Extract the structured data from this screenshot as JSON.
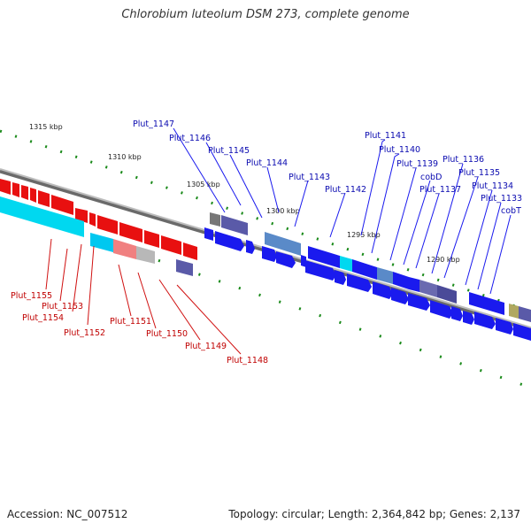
{
  "title": "Chlorobium luteolum DSM 273, complete genome",
  "footer": {
    "accession": "Accession: NC_007512",
    "summary": "Topology: circular; Length: 2,364,842 bp; Genes: 2,137"
  },
  "colors": {
    "forward_gene": "#1a1aee",
    "reverse_gene": "#e81010",
    "backbone": "#888888",
    "tick": "#1a8a1a",
    "label_forward": "#0a0ab0",
    "label_reverse": "#c00000"
  },
  "kbp_labels": [
    "1315 kbp",
    "1310 kbp",
    "1305 kbp",
    "1300 kbp",
    "1295 kbp",
    "1290 kbp"
  ],
  "forward_gene_labels": [
    "Plut_1147",
    "Plut_1146",
    "Plut_1145",
    "Plut_1144",
    "Plut_1143",
    "Plut_1142",
    "Plut_1141",
    "Plut_1140",
    "Plut_1139",
    "cobD",
    "Plut_1137",
    "Plut_1136",
    "Plut_1135",
    "Plut_1134",
    "Plut_1133",
    "cobT"
  ],
  "reverse_gene_labels": [
    "Plut_1155",
    "Plut_1153",
    "Plut_1154",
    "Plut_1152",
    "Plut_1151",
    "Plut_1150",
    "Plut_1149",
    "Plut_1148"
  ]
}
